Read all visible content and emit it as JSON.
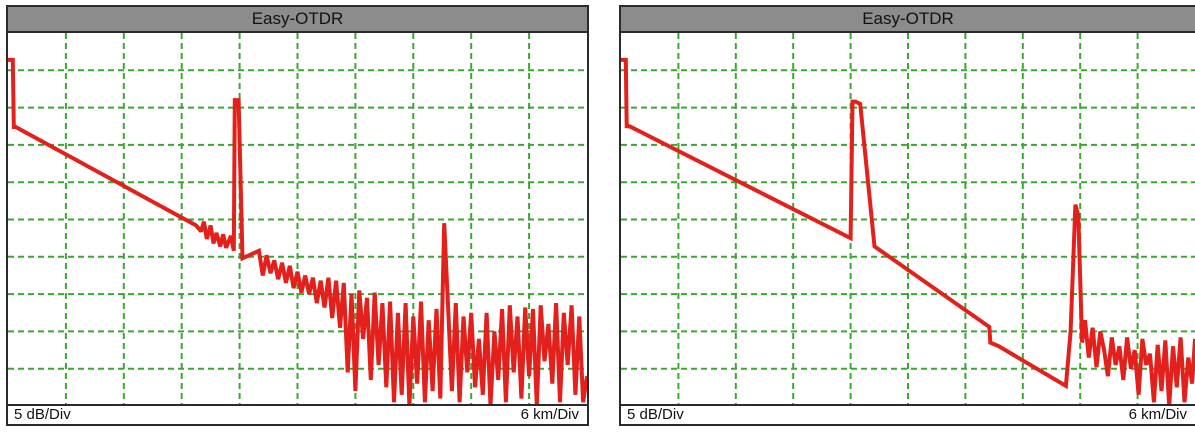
{
  "panels": [
    {
      "title": "Easy-OTDR",
      "y_scale": "5 dB/Div",
      "x_scale": "6 km/Div",
      "grid_color": "#3aa830",
      "trace_color": "#e3201b"
    },
    {
      "title": "Easy-OTDR",
      "y_scale": "5 dB/Div",
      "x_scale": "6 km/Div",
      "grid_color": "#3aa830",
      "trace_color": "#e3201b"
    }
  ],
  "chart_data": [
    {
      "type": "line",
      "title": "Easy-OTDR",
      "x_div": 6,
      "y_div": 5,
      "xlim": [
        0,
        60
      ],
      "ylim": [
        -50,
        0
      ],
      "series": [
        {
          "x": [
            0,
            0.5,
            0.6,
            0.8,
            19.5,
            20.0,
            20.3,
            20.6,
            21.0,
            21.3,
            21.6,
            22.0,
            22.3,
            22.6,
            23.1,
            23.4,
            23.5,
            23.9,
            24.3,
            26.0,
            26.4,
            26.8,
            27.2,
            27.6,
            28.0,
            28.4,
            28.8,
            29.2,
            29.6,
            30.0,
            30.4,
            30.8,
            31.2,
            31.6,
            32.0,
            32.4,
            32.8,
            33.2,
            33.6,
            34.0,
            34.4,
            34.8,
            35.2,
            35.6,
            36.0,
            36.4,
            36.8,
            37.2,
            37.6,
            38.0,
            38.4,
            38.8,
            39.2,
            39.6,
            40.0,
            40.4,
            40.8,
            41.2,
            41.6,
            42.0,
            42.4,
            42.8,
            43.2,
            43.6,
            44.0,
            44.4,
            44.8,
            45.2,
            45.6,
            46.0,
            46.4,
            46.8,
            47.2,
            47.6,
            48.0,
            48.4,
            48.8,
            49.2,
            49.6,
            50.0,
            50.4,
            50.8,
            51.2,
            51.6,
            52.0,
            52.4,
            52.8,
            53.2,
            53.6,
            54.0,
            54.4,
            54.8,
            55.2,
            55.6,
            56.0,
            56.4,
            56.8,
            57.2,
            57.6,
            58.0,
            58.4,
            58.8,
            59.2,
            59.6,
            60.0
          ],
          "y": [
            -3.6,
            -3.6,
            -12.6,
            -12.6,
            -25.8,
            -26.6,
            -25.3,
            -27.6,
            -25.8,
            -28.2,
            -26.8,
            -28.6,
            -27.0,
            -28.8,
            -27.2,
            -29.2,
            -9.0,
            -9.0,
            -30.2,
            -29.2,
            -32.5,
            -29.8,
            -32.2,
            -30.5,
            -33.0,
            -30.8,
            -33.5,
            -31.2,
            -34.2,
            -32.0,
            -34.8,
            -32.5,
            -35.0,
            -32.8,
            -36.2,
            -33.2,
            -36.8,
            -32.8,
            -38.2,
            -33.2,
            -39.5,
            -33.5,
            -45.5,
            -35.0,
            -48.0,
            -34.5,
            -41.0,
            -35.5,
            -46.5,
            -34.8,
            -44.5,
            -36.2,
            -47.5,
            -36.0,
            -49.5,
            -37.5,
            -48.5,
            -36.2,
            -50.0,
            -38.0,
            -47.0,
            -36.0,
            -49.5,
            -38.5,
            -48.0,
            -37.0,
            -49.0,
            -25.5,
            -36.5,
            -48.0,
            -36.2,
            -49.5,
            -38.0,
            -45.5,
            -37.5,
            -47.5,
            -41.0,
            -48.5,
            -37.5,
            -50.0,
            -40.0,
            -46.5,
            -37.0,
            -49.5,
            -36.5,
            -45.5,
            -38.0,
            -49.0,
            -36.8,
            -46.0,
            -37.0,
            -50.0,
            -36.5,
            -44.0,
            -39.0,
            -47.0,
            -36.2,
            -49.5,
            -37.5,
            -44.5,
            -36.5,
            -48.5,
            -38.0,
            -49.5,
            -46.0
          ]
        }
      ]
    },
    {
      "type": "line",
      "title": "Easy-OTDR",
      "x_div": 6,
      "y_div": 5,
      "xlim": [
        0,
        60
      ],
      "ylim": [
        -50,
        0
      ],
      "series": [
        {
          "x": [
            0,
            0.5,
            0.6,
            0.9,
            24.0,
            24.2,
            24.5,
            25.0,
            26.5,
            38.5,
            38.6,
            39.5,
            46.5,
            47.0,
            47.5,
            47.8,
            48.2,
            48.5,
            48.9,
            49.3,
            49.7,
            50.1,
            50.5,
            50.9,
            51.3,
            51.7,
            52.1,
            52.5,
            52.9,
            53.3,
            53.7,
            54.1,
            54.5,
            54.9,
            55.3,
            55.7,
            56.1,
            56.5,
            56.9,
            57.3,
            57.7,
            58.1,
            58.5,
            58.9,
            59.3,
            59.7,
            60.0
          ],
          "y": [
            -3.6,
            -3.6,
            -12.5,
            -12.5,
            -27.5,
            -9.2,
            -9.2,
            -9.5,
            -28.6,
            -39.4,
            -41.5,
            -42.0,
            -47.3,
            -40.0,
            -23.0,
            -24.5,
            -41.5,
            -38.5,
            -43.5,
            -39.5,
            -44.8,
            -40.0,
            -42.5,
            -46.0,
            -40.8,
            -44.5,
            -42.0,
            -46.5,
            -40.8,
            -45.0,
            -42.5,
            -48.5,
            -41.0,
            -44.5,
            -43.0,
            -49.5,
            -41.8,
            -48.0,
            -41.2,
            -50.0,
            -42.0,
            -47.5,
            -40.8,
            -49.5,
            -43.5,
            -47.0,
            -41.0
          ]
        }
      ]
    }
  ]
}
